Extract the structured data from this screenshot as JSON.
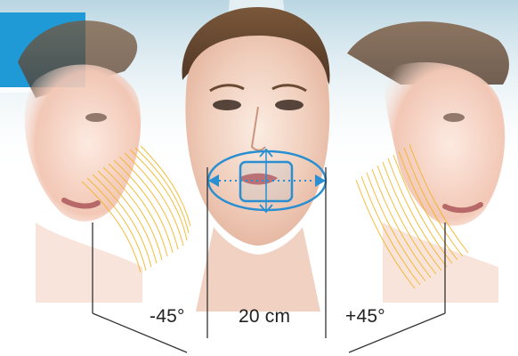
{
  "labels": {
    "left_angle": "-45°",
    "center_width": "20 cm",
    "right_angle": "+45°"
  },
  "colors": {
    "accent_blue": "#1f9ad6",
    "overlay_blue": "#2a8fd0",
    "skin_light": "#f6e4d8",
    "skin_warm": "#e7b8a4",
    "hair": "#6a4a32",
    "sky": "#cfe2ea",
    "bracket": "#333333",
    "arc": "#f2b21b"
  },
  "icons": {
    "vertical_arrows": "double-vertical-arrow",
    "horizontal_arrows": "double-horizontal-arrow"
  }
}
